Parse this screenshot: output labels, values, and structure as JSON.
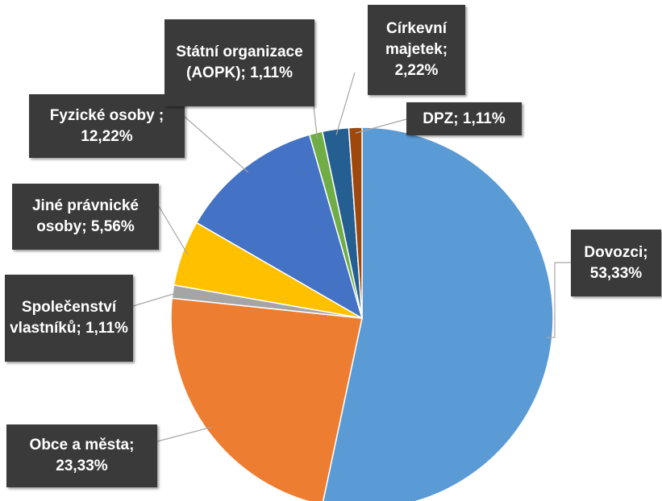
{
  "chart_data": {
    "type": "pie",
    "categories": [
      "Dovozci;",
      "Obce a města;",
      "Společenství vlastníků;",
      "Jiné právnické osoby;",
      "Fyzické osoby ;",
      "Státní organizace (AOPK);",
      "Církevní majetek;",
      "DPZ;"
    ],
    "values": [
      53.33,
      23.33,
      1.11,
      5.56,
      12.22,
      1.11,
      2.22,
      1.11
    ],
    "value_labels": [
      "53,33%",
      "23,33%",
      "1,11%",
      "5,56%",
      "12,22%",
      "1,11%",
      "2,22%",
      "1,11%"
    ],
    "colors": [
      "#5b9bd5",
      "#ed7d31",
      "#a5a5a5",
      "#ffc000",
      "#4472c4",
      "#70ad47",
      "#255e91",
      "#9e480e"
    ]
  }
}
